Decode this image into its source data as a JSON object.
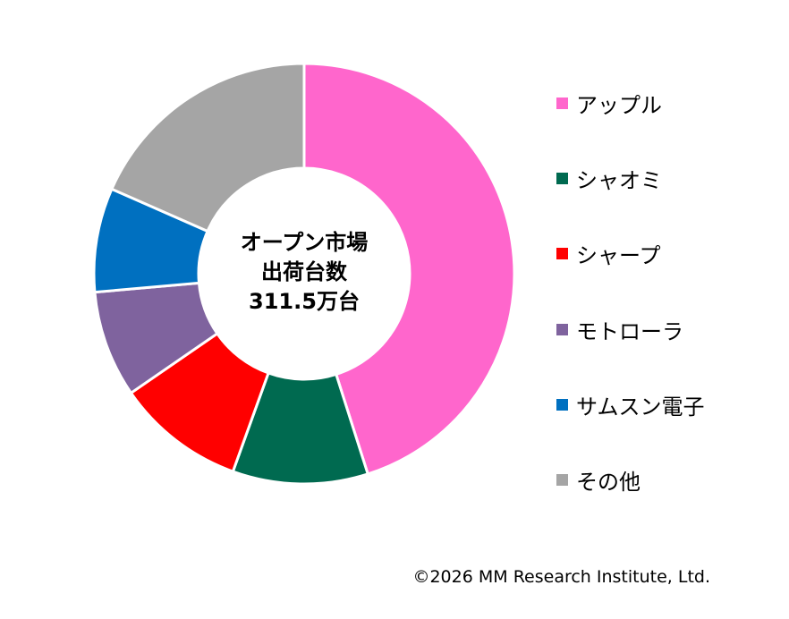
{
  "chart_data": {
    "type": "pie",
    "donut": true,
    "categories": [
      "アップル",
      "シャオミ",
      "シャープ",
      "モトローラ",
      "サムスン電子",
      "その他"
    ],
    "values": [
      45.1,
      10.4,
      9.9,
      8.2,
      8.0,
      18.4
    ],
    "colors": [
      "#FF66CC",
      "#006A50",
      "#FF0000",
      "#7F639E",
      "#0070C0",
      "#A5A5A5"
    ],
    "legend_position": "right",
    "center_label": {
      "line1": "オープン市場",
      "line2": "出荷台数",
      "line3": "311.5万台"
    }
  },
  "copyright": "©2026 MM Research Institute, Ltd."
}
